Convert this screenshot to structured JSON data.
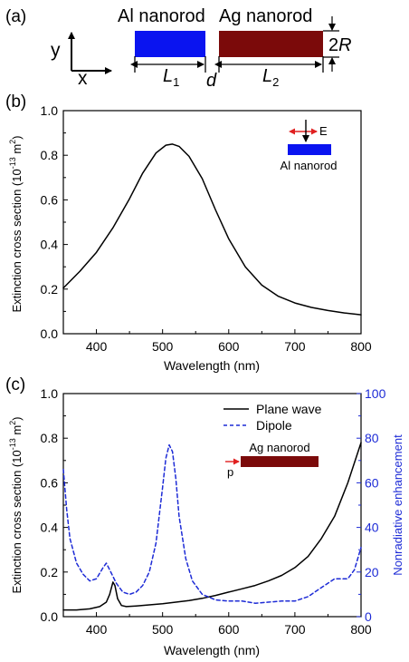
{
  "panel_a": {
    "label": "(a)",
    "axis_y": "y",
    "axis_x": "x",
    "al_label": "Al nanorod",
    "ag_label": "Ag nanorod",
    "l1": "L",
    "l1_sub": "1",
    "l2": "L",
    "l2_sub": "2",
    "gap": "d",
    "radius_prefix": "2",
    "radius": "R"
  },
  "chart_data": [
    {
      "panel": "(b)",
      "type": "line",
      "xlabel": "Wavelength (nm)",
      "ylabel_main": "Extinction cross section (10",
      "ylabel_exp": "-13",
      "ylabel_tail": " m",
      "ylabel_exp2": "2",
      "ylabel_close": ")",
      "xlim": [
        350,
        800
      ],
      "ylim": [
        0.0,
        1.0
      ],
      "xticks": [
        "400",
        "500",
        "600",
        "700",
        "800"
      ],
      "yticks": [
        "0.0",
        "0.2",
        "0.4",
        "0.6",
        "0.8",
        "1.0"
      ],
      "inset": {
        "field": "E",
        "rod": "Al nanorod",
        "rod_color": "#0a14f0"
      },
      "series": [
        {
          "color": "#000000",
          "dash": "solid",
          "x": [
            350,
            375,
            400,
            425,
            450,
            470,
            490,
            505,
            515,
            525,
            540,
            560,
            580,
            600,
            625,
            650,
            675,
            700,
            725,
            750,
            775,
            800
          ],
          "y": [
            0.205,
            0.28,
            0.365,
            0.475,
            0.605,
            0.72,
            0.81,
            0.845,
            0.85,
            0.84,
            0.795,
            0.695,
            0.555,
            0.425,
            0.3,
            0.218,
            0.168,
            0.138,
            0.118,
            0.104,
            0.093,
            0.085
          ]
        }
      ]
    },
    {
      "panel": "(c)",
      "type": "line",
      "xlabel": "Wavelength (nm)",
      "ylabel_main": "Extinction cross section (10",
      "ylabel_exp": "-13",
      "ylabel_tail": " m",
      "ylabel_exp2": "2",
      "ylabel_close": ")",
      "y2label": "Nonradiative enhancement",
      "xlim": [
        350,
        800
      ],
      "ylim": [
        0.0,
        1.0
      ],
      "y2lim": [
        0,
        100
      ],
      "xticks": [
        "400",
        "500",
        "600",
        "700",
        "800"
      ],
      "yticks": [
        "0.0",
        "0.2",
        "0.4",
        "0.6",
        "0.8",
        "1.0"
      ],
      "y2ticks": [
        "0",
        "20",
        "40",
        "60",
        "80",
        "100"
      ],
      "legend_position": "top-right",
      "inset": {
        "dipole": "p",
        "rod": "Ag nanorod",
        "rod_color": "#7b0a0a"
      },
      "series": [
        {
          "name": "Plane wave",
          "axis": "left",
          "color": "#000000",
          "dash": "solid",
          "x": [
            350,
            370,
            390,
            405,
            415,
            420,
            425,
            428,
            432,
            438,
            445,
            460,
            480,
            500,
            520,
            540,
            560,
            580,
            600,
            620,
            640,
            660,
            680,
            700,
            720,
            740,
            760,
            780,
            800
          ],
          "y": [
            0.03,
            0.03,
            0.035,
            0.045,
            0.065,
            0.1,
            0.155,
            0.14,
            0.08,
            0.05,
            0.045,
            0.048,
            0.053,
            0.058,
            0.065,
            0.072,
            0.082,
            0.095,
            0.11,
            0.125,
            0.14,
            0.16,
            0.185,
            0.22,
            0.27,
            0.35,
            0.45,
            0.6,
            0.78
          ]
        },
        {
          "name": "Dipole",
          "axis": "right",
          "color": "#1d2bd6",
          "dash": "dashed",
          "x": [
            350,
            355,
            360,
            370,
            380,
            390,
            400,
            410,
            415,
            420,
            430,
            440,
            450,
            460,
            470,
            480,
            490,
            500,
            505,
            510,
            515,
            520,
            525,
            535,
            545,
            560,
            580,
            600,
            620,
            640,
            660,
            680,
            700,
            720,
            740,
            760,
            770,
            780,
            790,
            800
          ],
          "y": [
            66,
            48,
            35,
            24,
            19,
            16,
            17,
            22,
            24,
            21,
            15,
            11,
            10,
            11,
            14,
            20,
            33,
            58,
            71,
            77,
            74,
            62,
            45,
            26,
            16,
            10,
            7.5,
            7,
            7,
            6,
            6.5,
            7,
            7,
            9,
            13,
            17,
            17,
            17,
            21,
            31
          ]
        }
      ]
    }
  ]
}
